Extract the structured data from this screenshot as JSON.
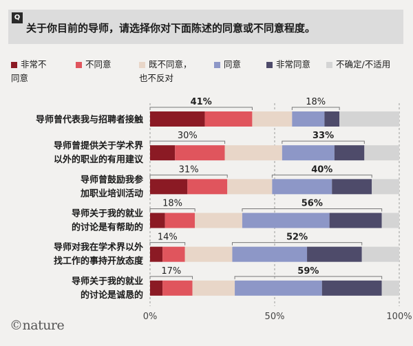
{
  "question": {
    "badge": "Q",
    "text": "关于你目前的导师，请选择你对下面陈述的同意或不同意程度。"
  },
  "legend": [
    {
      "lines": [
        "非常不",
        "同意"
      ],
      "color": "#8b1a24"
    },
    {
      "lines": [
        "不同意"
      ],
      "color": "#e0555d"
    },
    {
      "lines": [
        "既不同意，",
        "也不反对"
      ],
      "color": "#e8d6c8"
    },
    {
      "lines": [
        "同意"
      ],
      "color": "#8d97c7"
    },
    {
      "lines": [
        "非常同意"
      ],
      "color": "#4e4b6a"
    },
    {
      "lines": [
        "不确定/不适用"
      ],
      "color": "#d4d4d4"
    }
  ],
  "chart_data": {
    "type": "bar",
    "orientation": "horizontal",
    "stacked": true,
    "categories": [
      [
        "导师曾代表我与招聘者接触"
      ],
      [
        "导师曾提供关于学术界",
        "以外的职业的有用建议"
      ],
      [
        "导师曾鼓励我参",
        "加职业培训活动"
      ],
      [
        "导师关于我的就业",
        "的讨论是有帮助的"
      ],
      [
        "导师对我在学术界以外",
        "找工作的事持开放态度"
      ],
      [
        "导师关于我的就业",
        "的讨论是诚恳的"
      ]
    ],
    "series": [
      {
        "name": "非常不同意",
        "color": "#8b1a24",
        "values": [
          22,
          10,
          15,
          6,
          5,
          5
        ]
      },
      {
        "name": "不同意",
        "color": "#e0555d",
        "values": [
          19,
          20,
          16,
          12,
          9,
          12
        ]
      },
      {
        "name": "既不同意，也不反对",
        "color": "#e8d6c8",
        "values": [
          16,
          23,
          18,
          19,
          19,
          17
        ]
      },
      {
        "name": "同意",
        "color": "#8d97c7",
        "values": [
          13,
          21,
          24,
          35,
          30,
          35
        ]
      },
      {
        "name": "非常同意",
        "color": "#4e4b6a",
        "values": [
          6,
          12,
          16,
          21,
          22,
          24
        ]
      },
      {
        "name": "不确定/不适用",
        "color": "#d4d4d4",
        "values": [
          24,
          14,
          11,
          7,
          15,
          7
        ]
      }
    ],
    "disagree_totals": [
      "41%",
      "30%",
      "31%",
      "18%",
      "14%",
      "17%"
    ],
    "agree_totals": [
      "18%",
      "33%",
      "40%",
      "56%",
      "52%",
      "59%"
    ],
    "xlim": [
      0,
      100
    ],
    "x_ticks": [
      "0%",
      "50%",
      "100%"
    ],
    "grid": true
  },
  "footer": {
    "logo": "©nature"
  }
}
